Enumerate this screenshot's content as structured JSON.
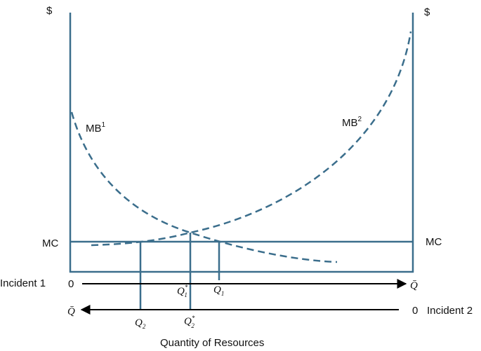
{
  "axes": {
    "left_label": "$",
    "right_label": "$",
    "x_label": "Quantity of Resources"
  },
  "curves": {
    "mb1": {
      "base": "MB",
      "sup": "1"
    },
    "mb2": {
      "base": "MB",
      "sup": "2"
    }
  },
  "mc": {
    "left": "MC",
    "right": "MC"
  },
  "incident1": {
    "label": "Incident 1",
    "origin": "0",
    "end": "Q̄",
    "q_star": {
      "base": "Q",
      "sub": "1",
      "sup": "*"
    },
    "q": {
      "base": "Q",
      "sub": "1"
    }
  },
  "incident2": {
    "label": "Incident 2",
    "origin": "0",
    "end": "Q̄",
    "q_star": {
      "base": "Q",
      "sub": "2",
      "sup": "*"
    },
    "q": {
      "base": "Q",
      "sub": "2"
    }
  }
}
